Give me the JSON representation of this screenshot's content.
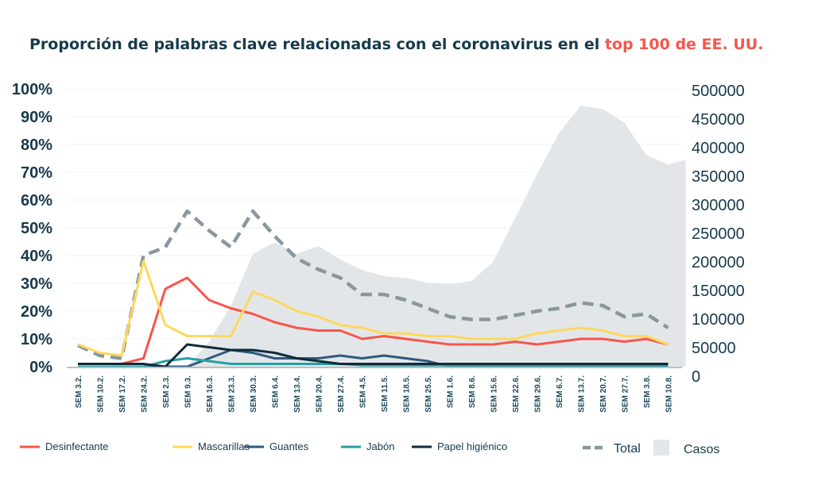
{
  "chart_data": {
    "type": "line",
    "title_prefix": "Proporción de palabras clave relacionadas con el coronavirus en el ",
    "title_highlight": "top 100 de EE. UU.",
    "categories": [
      "SEM 3.2.",
      "SEM 10.2.",
      "SEM 17.2.",
      "SEM 24.2.",
      "SEM 2.3.",
      "SEM 9.3.",
      "SEM 16.3.",
      "SEM 23.3.",
      "SEM 30.3.",
      "SEM 6.4.",
      "SEM 13.4.",
      "SEM 20.4.",
      "SEM 27.4.",
      "SEM 4.5.",
      "SEM 11.5.",
      "SEM 18.5.",
      "SEM 25.5.",
      "SEM 1.6.",
      "SEM 8.6.",
      "SEM 15.6.",
      "SEM 22.6.",
      "SEM 29.6.",
      "SEM 6.7.",
      "SEM 13.7.",
      "SEM 20.7.",
      "SEM 27.7.",
      "SEM 3.8.",
      "SEM 10.8."
    ],
    "y_left": {
      "ylim": [
        0,
        100
      ],
      "ticks": [
        "0%",
        "10%",
        "20%",
        "30%",
        "40%",
        "50%",
        "60%",
        "70%",
        "80%",
        "90%",
        "100%"
      ]
    },
    "y_right": {
      "ylim": [
        0,
        500000
      ],
      "ticks": [
        "0",
        "50000",
        "100000",
        "150000",
        "200000",
        "250000",
        "300000",
        "350000",
        "400000",
        "450000",
        "500000"
      ]
    },
    "area": {
      "name": "Casos",
      "color": "#e3e6e8",
      "axis": "right",
      "values": [
        0,
        0,
        0,
        0,
        0,
        0,
        45000,
        110000,
        203000,
        224000,
        203000,
        217000,
        193000,
        174000,
        163000,
        160000,
        151000,
        149000,
        154000,
        189000,
        267000,
        346000,
        420000,
        470000,
        464000,
        439000,
        381000,
        364000
      ]
    },
    "series": [
      {
        "name": "Total",
        "color": "#8a979e",
        "dashed": true,
        "axis": "left",
        "values": [
          7.7,
          4,
          3,
          40,
          43,
          56,
          49,
          43,
          56,
          47,
          39,
          35,
          32,
          26,
          26,
          24,
          21,
          18,
          17,
          17,
          18.5,
          20,
          21,
          23,
          22,
          18,
          19,
          14
        ]
      },
      {
        "name": "Desinfectante",
        "color": "#f5564d",
        "axis": "left",
        "values": [
          1,
          1,
          1,
          3,
          28,
          32,
          24,
          21,
          19,
          16,
          14,
          13,
          13,
          10,
          11,
          10,
          9,
          8,
          8,
          8,
          9,
          8,
          9,
          10,
          10,
          9,
          10,
          8
        ]
      },
      {
        "name": "Mascarillas",
        "color": "#fdd85d",
        "axis": "left",
        "values": [
          8,
          5,
          4,
          38,
          15,
          11,
          11,
          11,
          27,
          24,
          20,
          18,
          15,
          14,
          12,
          12,
          11,
          11,
          10,
          10,
          10,
          12,
          13,
          14,
          13,
          11,
          11,
          8
        ]
      },
      {
        "name": "Guantes",
        "color": "#2e5a7e",
        "axis": "left",
        "values": [
          0,
          0,
          0,
          0,
          0,
          0,
          3,
          6,
          5,
          3,
          3,
          3,
          4,
          3,
          4,
          3,
          2,
          0,
          0,
          0,
          0,
          0,
          0,
          0,
          0,
          0,
          0,
          0
        ]
      },
      {
        "name": "Jabón",
        "color": "#26a0a3",
        "axis": "left",
        "values": [
          0,
          0,
          0,
          0,
          2,
          3,
          2,
          1,
          1,
          1,
          1,
          1,
          1,
          0.5,
          0.5,
          0.5,
          0.5,
          0.5,
          0.5,
          0.5,
          0.5,
          0.5,
          0.5,
          0.5,
          0.5,
          0.5,
          0.5,
          0.5
        ]
      },
      {
        "name": "Papel higiénico",
        "color": "#0d2b3a",
        "axis": "left",
        "values": [
          1,
          1,
          1,
          1,
          0,
          8,
          7,
          6,
          6,
          5,
          3,
          2,
          1,
          1,
          1,
          1,
          1,
          1,
          1,
          1,
          1,
          1,
          1,
          1,
          1,
          1,
          1,
          1
        ]
      }
    ],
    "legend": [
      "Desinfectante",
      "Mascarillas",
      "Guantes",
      "Jabón",
      "Papel higiénico",
      "Total",
      "Casos"
    ],
    "legend_position": "bottom",
    "grid": true
  }
}
